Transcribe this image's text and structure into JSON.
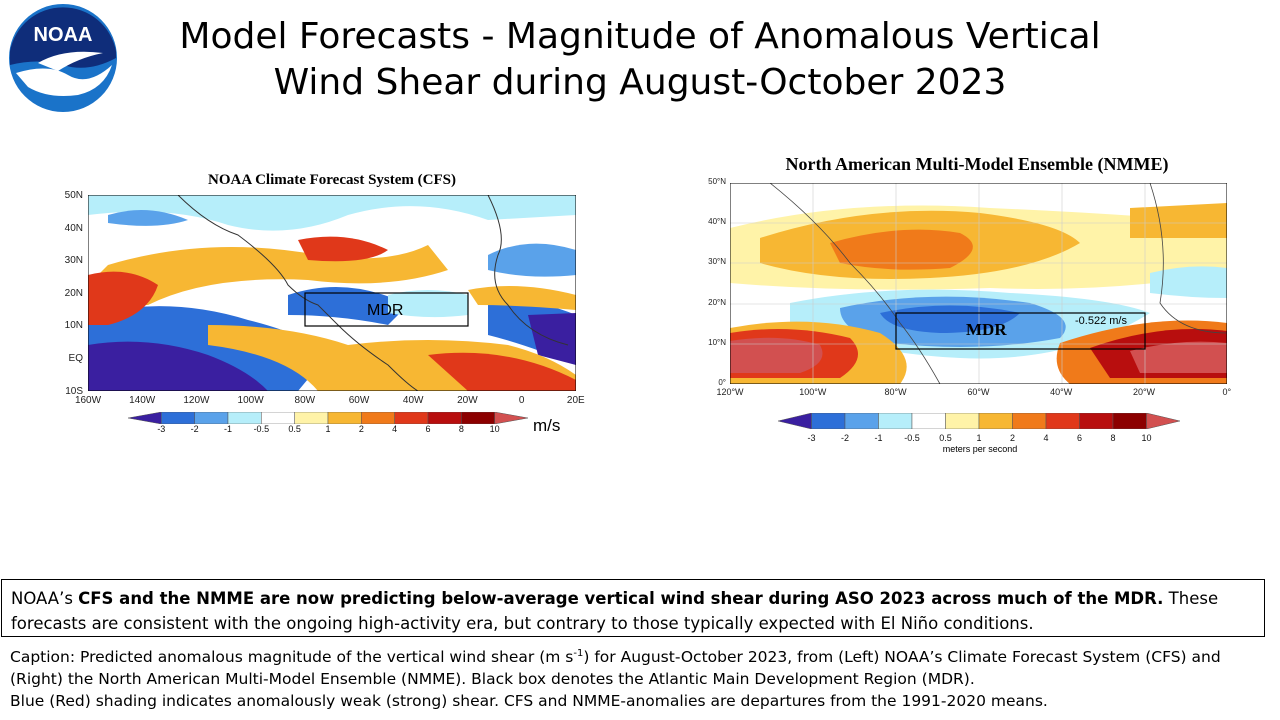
{
  "header": {
    "title_line1": "Model Forecasts - Magnitude of Anomalous Vertical",
    "title_line2": "Wind Shear during August-October 2023",
    "logo_text": "NOAA"
  },
  "left_map": {
    "title": "NOAA Climate Forecast System (CFS)",
    "lat_ticks": [
      "50N",
      "40N",
      "30N",
      "20N",
      "10N",
      "EQ",
      "10S"
    ],
    "lon_ticks": [
      "160W",
      "140W",
      "120W",
      "100W",
      "80W",
      "60W",
      "40W",
      "20W",
      "0",
      "20E"
    ],
    "box_label": "MDR",
    "colorbar_labels": [
      "-3",
      "-2",
      "-1",
      "-0.5",
      "0.5",
      "1",
      "2",
      "4",
      "6",
      "8",
      "10"
    ],
    "colorbar_unit": "m/s"
  },
  "right_map": {
    "title": "North American Multi-Model Ensemble (NMME)",
    "lat_ticks": [
      "50°N",
      "40°N",
      "30°N",
      "20°N",
      "10°N",
      "0°"
    ],
    "lon_ticks": [
      "120°W",
      "100°W",
      "80°W",
      "60°W",
      "40°W",
      "20°W",
      "0°"
    ],
    "box_label": "MDR",
    "box_value": "-0.522 m/s",
    "colorbar_labels": [
      "-3",
      "-2",
      "-1",
      "-0.5",
      "0.5",
      "1",
      "2",
      "4",
      "6",
      "8",
      "10"
    ],
    "colorbar_unit": "meters per second"
  },
  "colors": {
    "scale": [
      "#3a1fa0",
      "#2d6fd8",
      "#5aa2ea",
      "#b6eefa",
      "#ffffff",
      "#fff3a8",
      "#f7b733",
      "#f07a1a",
      "#e0381a",
      "#b80e0e",
      "#8c0000",
      "#d25050"
    ],
    "logo_blue": "#1a73c9"
  },
  "summary": {
    "prefix": "NOAA’s ",
    "bold": "CFS and the NMME are now predicting below-average vertical wind shear during ASO 2023 across much of the MDR.",
    "rest": " These forecasts are consistent with the ongoing high-activity era, but contrary to those typically expected with El Niño conditions."
  },
  "caption": {
    "part1": "Caption: Predicted anomalous magnitude of the vertical wind shear (m s",
    "sup": "-1",
    "part2": ") for August-October 2023, from (Left) NOAA’s Climate Forecast System (CFS) and (Right) the North American Multi-Model Ensemble (NMME). Black box denotes the Atlantic Main Development Region (MDR).",
    "line2": "Blue (Red) shading indicates anomalously weak (strong) shear. CFS and NMME-anomalies are departures from the 1991-2020 means."
  }
}
